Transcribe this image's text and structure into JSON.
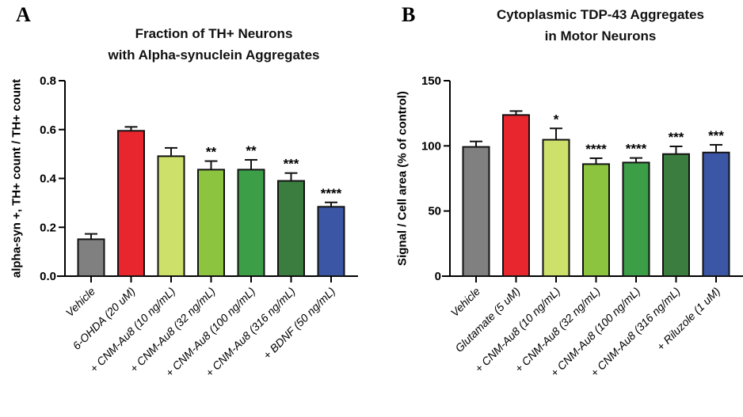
{
  "chart_data": [
    {
      "type": "bar",
      "panel_label": "A",
      "title": [
        "Fraction of TH+ Neurons",
        "with Alpha-synuclein Aggregates"
      ],
      "ylabel": "alpha-syn +, TH+ count / TH+ count",
      "ylim": [
        0,
        0.8
      ],
      "yticks": [
        "0.0",
        "0.2",
        "0.4",
        "0.6",
        "0.8"
      ],
      "ytick_values": [
        0,
        0.2,
        0.4,
        0.6,
        0.8
      ],
      "categories": [
        "Vehicle",
        "6-OHDA (20 uM)",
        "+ CNM-Au8 (10 ng/mL)",
        "+ CNM-Au8 (32 ng/mL)",
        "+ CNM-Au8 (100 ng/mL)",
        "+ CNM-Au8 (316 ng/mL)",
        "+ BDNF (50 ng/mL)"
      ],
      "values": [
        0.151,
        0.595,
        0.491,
        0.436,
        0.436,
        0.39,
        0.284
      ],
      "error_upper": [
        0.173,
        0.611,
        0.525,
        0.471,
        0.476,
        0.422,
        0.302
      ],
      "significance": [
        "",
        "",
        "",
        "**",
        "**",
        "***",
        "****"
      ],
      "colors": [
        "#808080",
        "#e8262d",
        "#cde06a",
        "#8cc43f",
        "#3d9e48",
        "#3a7d3e",
        "#3c56a6"
      ],
      "grid": false
    },
    {
      "type": "bar",
      "panel_label": "B",
      "title": [
        "Cytoplasmic TDP-43 Aggregates",
        "in Motor Neurons"
      ],
      "ylabel": "Signal / Cell area (% of control)",
      "ylim": [
        0,
        150
      ],
      "yticks": [
        "0",
        "50",
        "100",
        "150"
      ],
      "ytick_values": [
        0,
        50,
        100,
        150
      ],
      "categories": [
        "Vehicle",
        "Glutamate (5 uM)",
        "+ CNM-Au8 (10 ng/mL)",
        "+ CNM-Au8 (32 ng/mL)",
        "+ CNM-Au8 (100 ng/mL)",
        "+ CNM-Au8 (316 ng/mL)",
        "+ Riluzole (1 uM)"
      ],
      "values": [
        99.2,
        123.7,
        104.7,
        86.0,
        87.2,
        93.7,
        94.9
      ],
      "error_upper": [
        103.4,
        126.7,
        113.4,
        90.5,
        90.7,
        99.6,
        100.8
      ],
      "significance": [
        "",
        "",
        "*",
        "****",
        "****",
        "***",
        "***"
      ],
      "colors": [
        "#808080",
        "#e8262d",
        "#cde06a",
        "#8cc43f",
        "#3d9e48",
        "#3a7d3e",
        "#3c56a6"
      ],
      "grid": false
    }
  ]
}
